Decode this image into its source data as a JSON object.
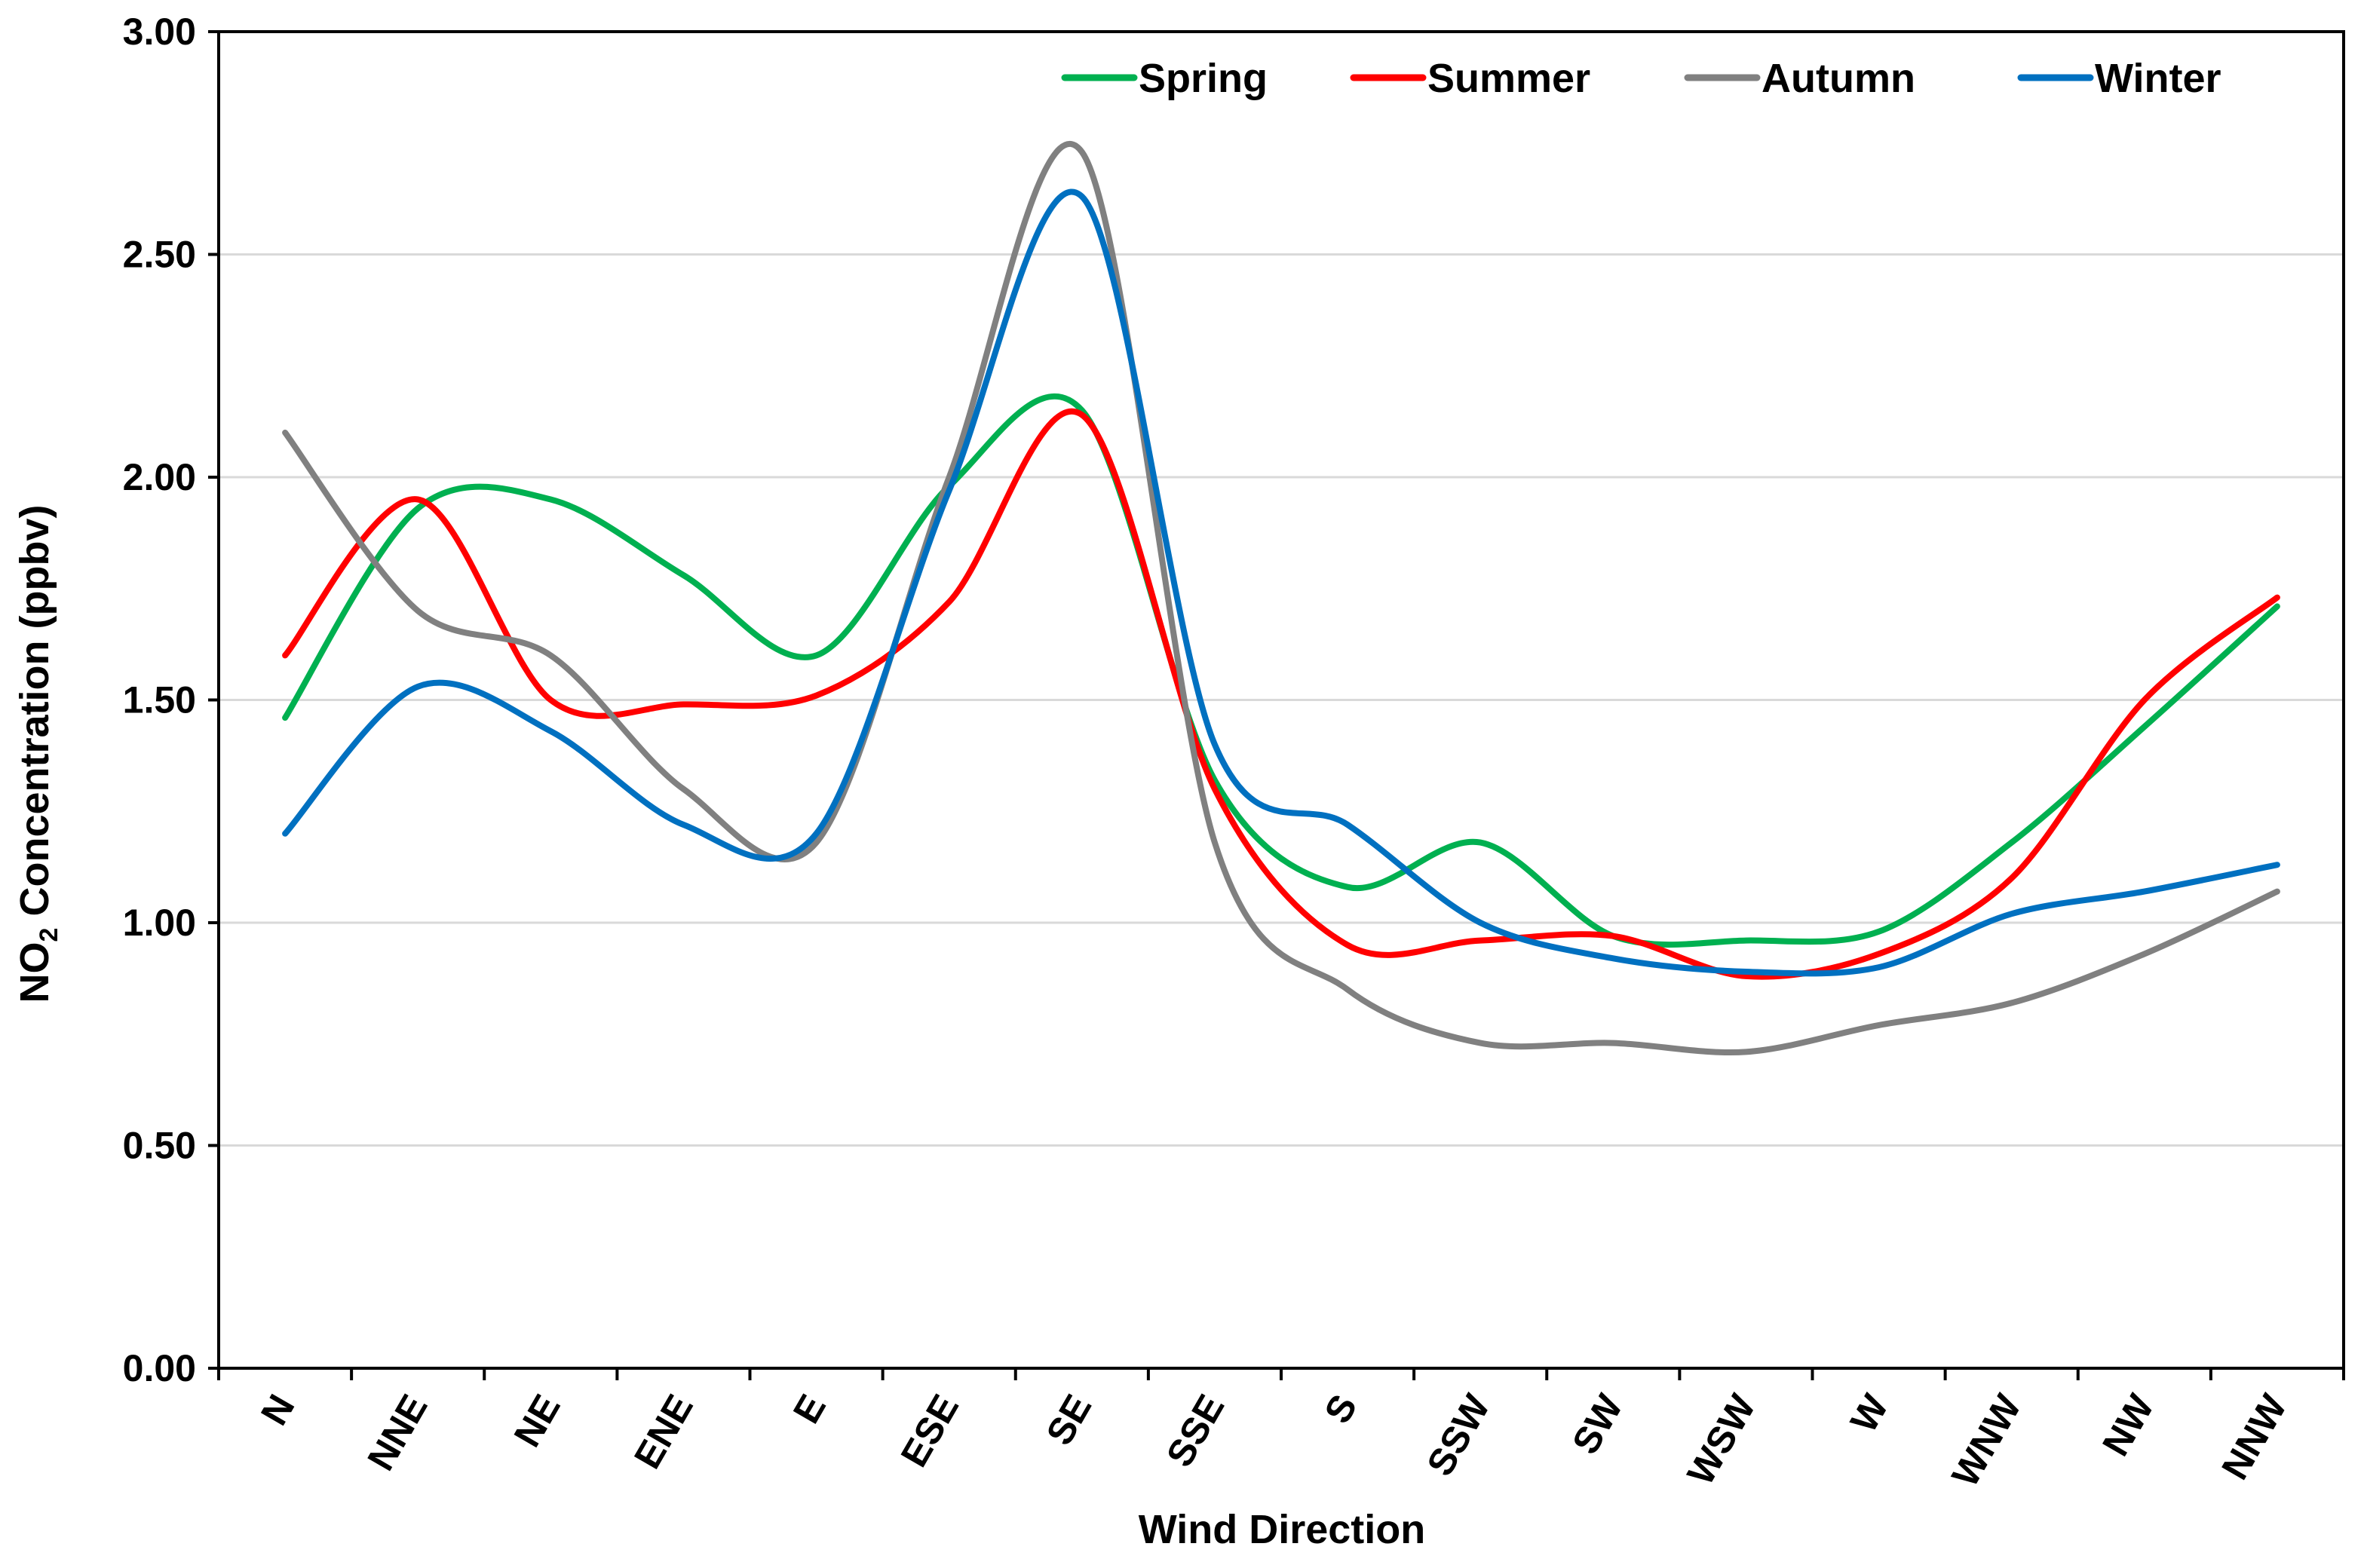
{
  "chart_data": {
    "type": "line",
    "title": "",
    "xlabel": "Wind Direction",
    "ylabel_main": "NO",
    "ylabel_sub": "2",
    "ylabel_rest": " Concentration (ppbv)",
    "ylim": [
      0,
      3
    ],
    "yticks": [
      0,
      0.5,
      1.0,
      1.5,
      2.0,
      2.5,
      3.0
    ],
    "ytick_labels": [
      "0.00",
      "0.50",
      "1.00",
      "1.50",
      "2.00",
      "2.50",
      "3.00"
    ],
    "grid": true,
    "legend_position": "top-right",
    "categories": [
      "N",
      "NNE",
      "NE",
      "ENE",
      "E",
      "ESE",
      "SE",
      "SSE",
      "S",
      "SSW",
      "SW",
      "WSW",
      "W",
      "WNW",
      "NW",
      "NNW"
    ],
    "series": [
      {
        "name": "Spring",
        "color": "#00b050",
        "values": [
          1.46,
          1.93,
          1.95,
          1.78,
          1.6,
          1.98,
          2.15,
          1.32,
          1.08,
          1.18,
          0.97,
          0.96,
          0.98,
          1.18,
          1.44,
          1.71
        ]
      },
      {
        "name": "Summer",
        "color": "#ff0000",
        "values": [
          1.6,
          1.95,
          1.5,
          1.49,
          1.51,
          1.72,
          2.14,
          1.3,
          0.95,
          0.96,
          0.97,
          0.88,
          0.93,
          1.1,
          1.5,
          1.73
        ]
      },
      {
        "name": "Autumn",
        "color": "#808080",
        "values": [
          2.1,
          1.7,
          1.6,
          1.3,
          1.18,
          2.0,
          2.73,
          1.18,
          0.85,
          0.73,
          0.73,
          0.71,
          0.77,
          0.82,
          0.93,
          1.07
        ]
      },
      {
        "name": "Winter",
        "color": "#0070c0",
        "values": [
          1.2,
          1.53,
          1.43,
          1.22,
          1.2,
          1.97,
          2.63,
          1.4,
          1.22,
          1.0,
          0.92,
          0.89,
          0.9,
          1.02,
          1.07,
          1.13
        ]
      }
    ]
  }
}
